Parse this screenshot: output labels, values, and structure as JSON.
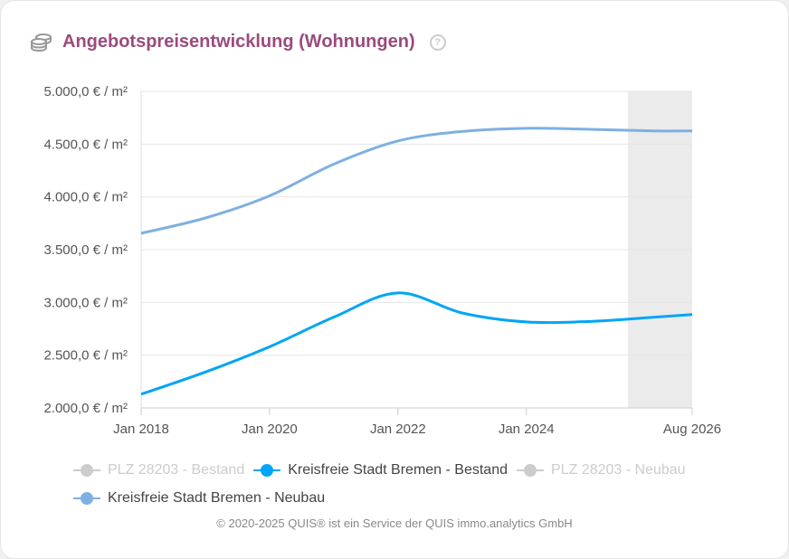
{
  "title": "Angebotspreisentwicklung (Wohnungen)",
  "icons": {
    "title": "coins-icon",
    "help": "help-circle-icon"
  },
  "help_glyph": "?",
  "chart_data": {
    "type": "line",
    "y_ticks": [
      "2.000,0 € / m²",
      "2.500,0 € / m²",
      "3.000,0 € / m²",
      "3.500,0 € / m²",
      "4.000,0 € / m²",
      "4.500,0 € / m²",
      "5.000,0 € / m²"
    ],
    "y_tick_values": [
      2000,
      2500,
      3000,
      3500,
      4000,
      4500,
      5000
    ],
    "ylim": [
      2000,
      5000
    ],
    "x_ticks": [
      "Jan 2018",
      "Jan 2020",
      "Jan 2022",
      "Jan 2024",
      "Aug 2026"
    ],
    "x_tick_values": [
      2018.0,
      2020.0,
      2022.0,
      2024.0,
      2026.583
    ],
    "xlim": [
      2018.0,
      2026.583
    ],
    "shaded_region": [
      2025.583,
      2026.583
    ],
    "grid": true,
    "legend_placement": "bottom",
    "series": [
      {
        "name": "PLZ 28203 - Bestand",
        "color": "#cccccc",
        "visible": false,
        "x": [],
        "y": []
      },
      {
        "name": "Kreisfreie Stadt Bremen - Bestand",
        "color": "#00a5f5",
        "visible": true,
        "x": [
          2018,
          2019,
          2020,
          2021,
          2022,
          2023,
          2024,
          2025,
          2026,
          2026.583
        ],
        "y": [
          2130,
          2340,
          2580,
          2860,
          3090,
          2900,
          2815,
          2820,
          2860,
          2885
        ]
      },
      {
        "name": "PLZ 28203 - Neubau",
        "color": "#cccccc",
        "visible": false,
        "x": [],
        "y": []
      },
      {
        "name": "Kreisfreie Stadt Bremen - Neubau",
        "color": "#7eb0e3",
        "visible": true,
        "x": [
          2018,
          2019,
          2020,
          2021,
          2022,
          2023,
          2024,
          2025,
          2026,
          2026.583
        ],
        "y": [
          3655,
          3800,
          4010,
          4310,
          4530,
          4620,
          4650,
          4640,
          4625,
          4625
        ]
      }
    ]
  },
  "footer": "© 2020-2025 QUIS® ist ein Service der QUIS immo.analytics GmbH"
}
